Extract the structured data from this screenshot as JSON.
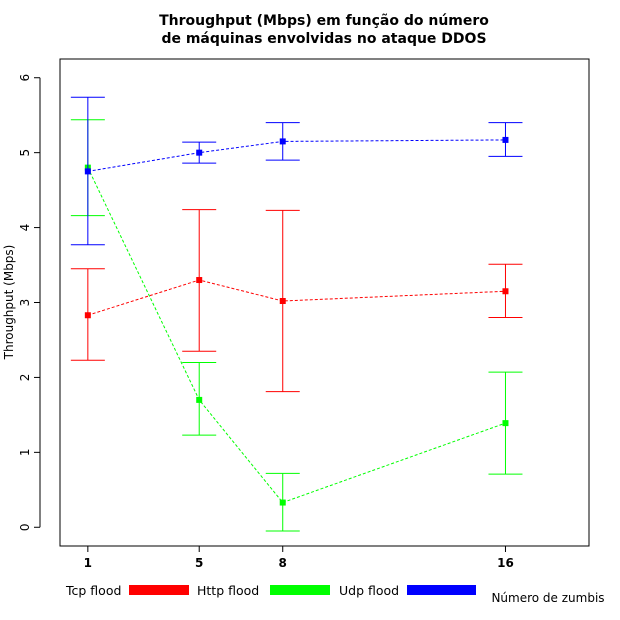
{
  "chart_data": {
    "type": "line",
    "title": [
      "Throughput (Mbps) em função do número",
      "de máquinas envolvidas no ataque DDOS"
    ],
    "xlabel": "Número de zumbis",
    "ylabel": "Throughput (Mbps)",
    "x": [
      1,
      5,
      8,
      16
    ],
    "x_ticks": [
      "1",
      "5",
      "8",
      "16"
    ],
    "xlim": [
      0,
      19
    ],
    "ylim": [
      -0.25,
      6.25
    ],
    "y_ticks": [
      "0",
      "1",
      "2",
      "3",
      "4",
      "5",
      "6"
    ],
    "grid": false,
    "legend_position": "bottom",
    "series": [
      {
        "name": "Tcp flood",
        "color": "#ff0000",
        "values": [
          2.83,
          3.3,
          3.02,
          3.15
        ],
        "low": [
          2.23,
          2.35,
          1.81,
          2.8
        ],
        "high": [
          3.45,
          4.24,
          4.23,
          3.51
        ]
      },
      {
        "name": "Http flood",
        "color": "#00ff00",
        "values": [
          4.8,
          1.7,
          0.33,
          1.39
        ],
        "low": [
          4.16,
          1.23,
          -0.05,
          0.71
        ],
        "high": [
          5.44,
          2.2,
          0.72,
          2.07
        ]
      },
      {
        "name": "Udp flood",
        "color": "#0000ff",
        "values": [
          4.75,
          5.0,
          5.15,
          5.17
        ],
        "low": [
          3.77,
          4.86,
          4.9,
          4.95
        ],
        "high": [
          5.74,
          5.14,
          5.4,
          5.4
        ]
      }
    ]
  }
}
